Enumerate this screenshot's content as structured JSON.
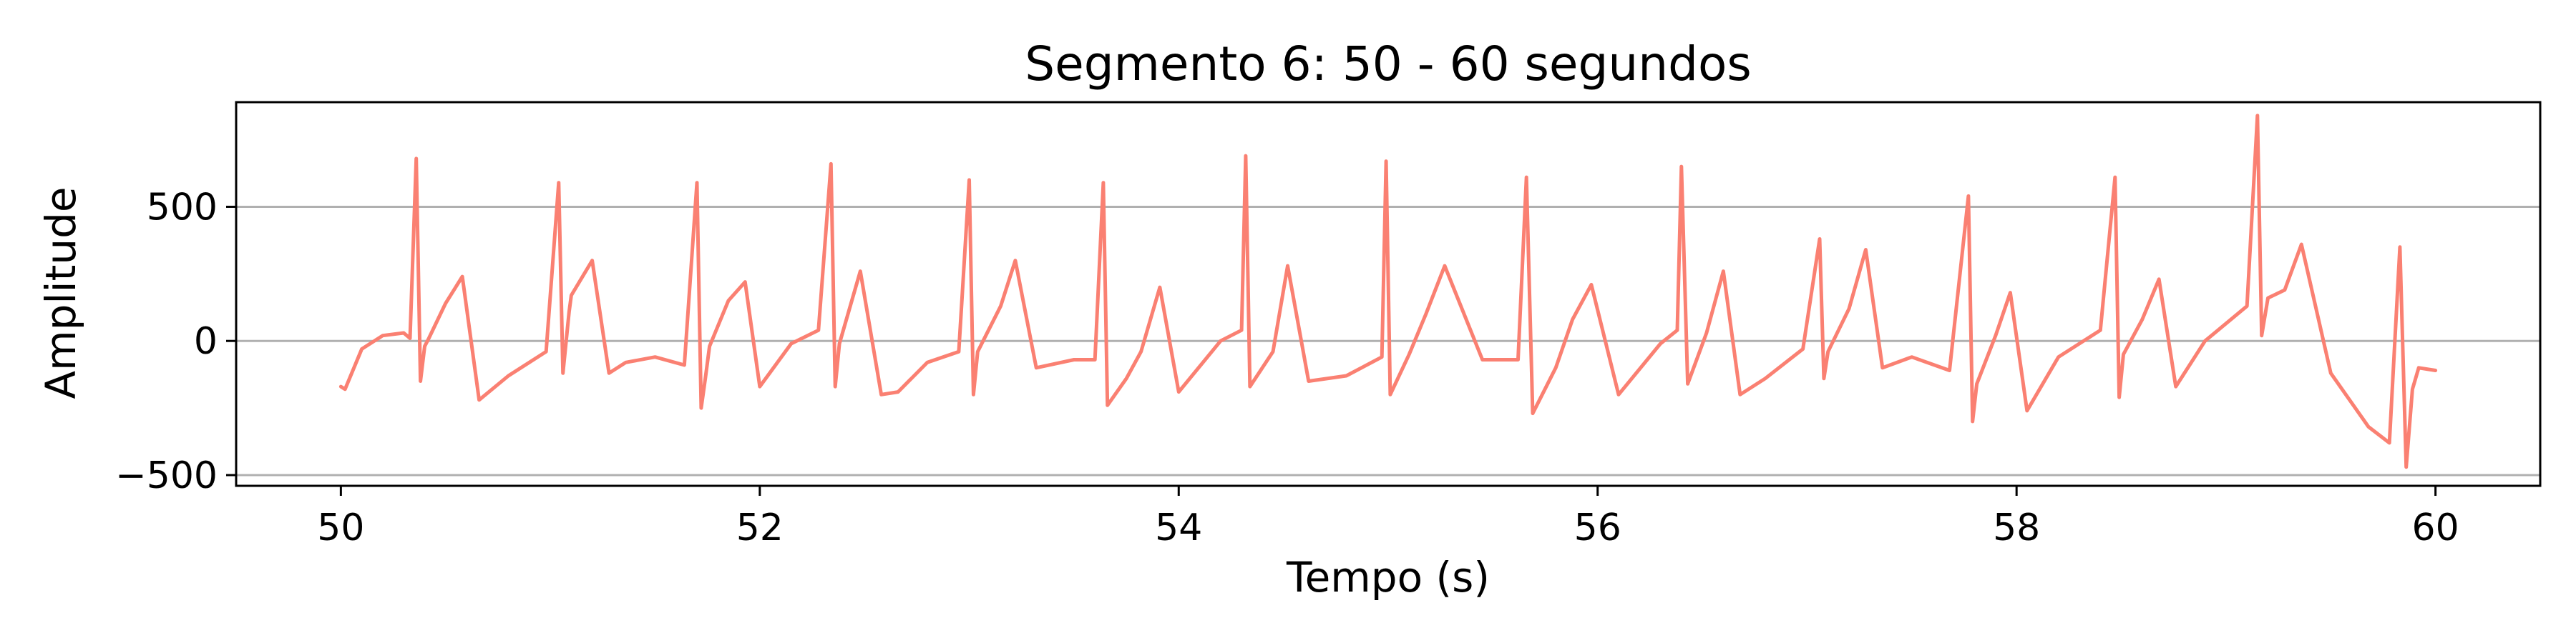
{
  "chart_data": {
    "type": "line",
    "title": "Segmento 6: 50 - 60 segundos",
    "xlabel": "Tempo (s)",
    "ylabel": "Amplitude",
    "xlim": [
      49.5,
      60.5
    ],
    "ylim": [
      -540,
      890
    ],
    "xticks": [
      50,
      52,
      54,
      56,
      58,
      60
    ],
    "xtick_labels": [
      "50",
      "52",
      "54",
      "56",
      "58",
      "60"
    ],
    "yticks": [
      -500,
      0,
      500
    ],
    "ytick_labels": [
      "−500",
      "0",
      "500"
    ],
    "grid": {
      "x": false,
      "y": true
    },
    "legend": "none",
    "colors": {
      "line": "#fa8072",
      "grid": "#b0b0b0",
      "axes": "#000000"
    },
    "series": [
      {
        "x": [
          50.0,
          50.02,
          50.1,
          50.2,
          50.3,
          50.33,
          50.36,
          50.38,
          50.4,
          50.42,
          50.5,
          50.58,
          50.66,
          50.8,
          50.98,
          51.04,
          51.06,
          51.09,
          51.1,
          51.2,
          51.28,
          51.36,
          51.5,
          51.64,
          51.7,
          51.72,
          51.74,
          51.76,
          51.85,
          51.93,
          52.0,
          52.15,
          52.28,
          52.34,
          52.36,
          52.38,
          52.48,
          52.58,
          52.66,
          52.8,
          52.95,
          53.0,
          53.02,
          53.04,
          53.15,
          53.22,
          53.32,
          53.5,
          53.6,
          53.64,
          53.66,
          53.75,
          53.82,
          53.91,
          54.0,
          54.2,
          54.3,
          54.32,
          54.34,
          54.45,
          54.52,
          54.62,
          54.8,
          54.97,
          54.99,
          55.01,
          55.1,
          55.18,
          55.27,
          55.45,
          55.62,
          55.66,
          55.69,
          55.8,
          55.88,
          55.97,
          56.1,
          56.3,
          56.38,
          56.4,
          56.43,
          56.52,
          56.6,
          56.68,
          56.8,
          56.98,
          57.06,
          57.08,
          57.1,
          57.2,
          57.28,
          57.36,
          57.5,
          57.68,
          57.77,
          57.79,
          57.81,
          57.9,
          57.97,
          58.05,
          58.2,
          58.4,
          58.47,
          58.49,
          58.51,
          58.6,
          58.68,
          58.76,
          58.9,
          59.1,
          59.15,
          59.17,
          59.2,
          59.28,
          59.36,
          59.5,
          59.68,
          59.78,
          59.83,
          59.86,
          59.89,
          59.92,
          60.0
        ],
        "values": [
          -170,
          -180,
          -30,
          20,
          30,
          10,
          680,
          -150,
          -20,
          10,
          140,
          240,
          -220,
          -130,
          -40,
          590,
          -120,
          110,
          170,
          300,
          -120,
          -80,
          -60,
          -90,
          590,
          -250,
          -140,
          -20,
          150,
          220,
          -170,
          -10,
          40,
          660,
          -170,
          -10,
          260,
          -200,
          -190,
          -80,
          -40,
          600,
          -200,
          -40,
          130,
          300,
          -100,
          -70,
          -70,
          590,
          -240,
          -140,
          -40,
          200,
          -190,
          0,
          40,
          690,
          -170,
          -40,
          280,
          -150,
          -130,
          -60,
          670,
          -200,
          -50,
          100,
          280,
          -70,
          -70,
          610,
          -270,
          -100,
          80,
          210,
          -200,
          -10,
          40,
          650,
          -160,
          30,
          260,
          -200,
          -140,
          -30,
          380,
          -140,
          -40,
          120,
          340,
          -100,
          -60,
          -110,
          540,
          -300,
          -160,
          20,
          180,
          -260,
          -60,
          40,
          610,
          -210,
          -50,
          80,
          230,
          -170,
          0,
          130,
          840,
          20,
          160,
          190,
          360,
          -120,
          -320,
          -380,
          350,
          -470,
          -180,
          -100,
          -110
        ]
      }
    ]
  }
}
